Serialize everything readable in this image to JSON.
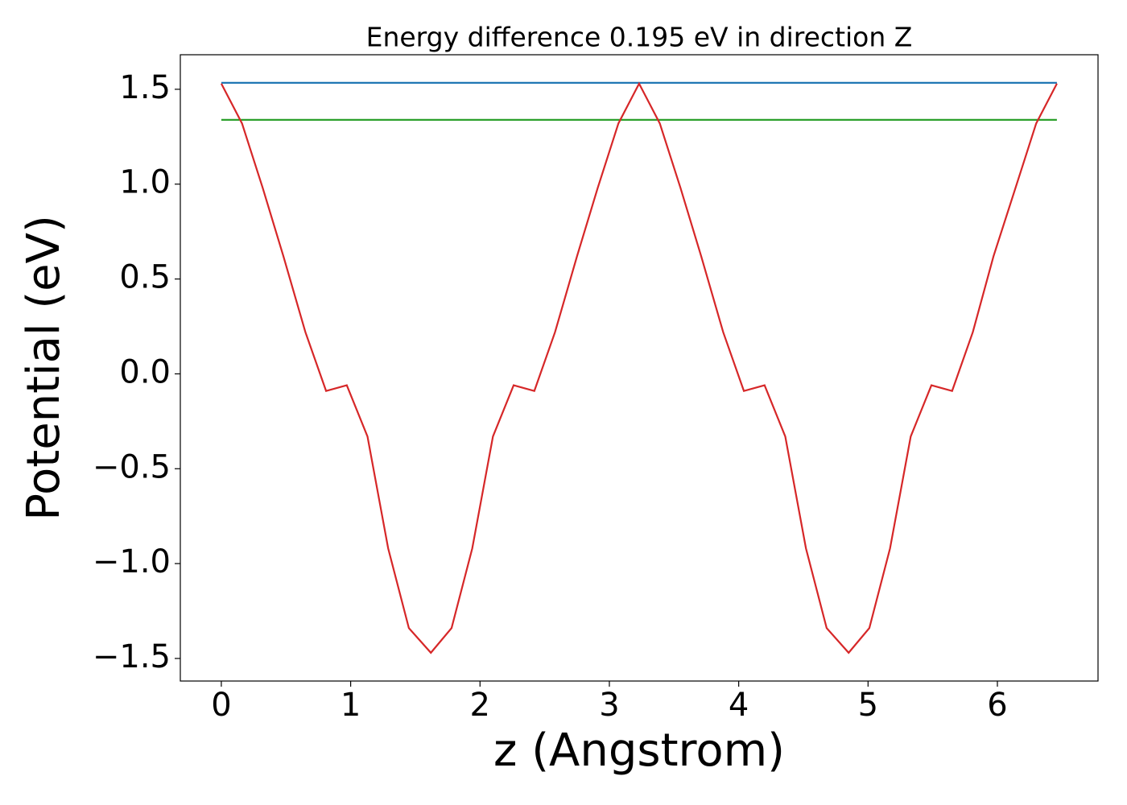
{
  "chart_data": {
    "type": "line",
    "title": "Energy difference 0.195 eV in direction Z",
    "xlabel": "z (Angstrom)",
    "ylabel": "Potential (eV)",
    "series": [
      {
        "color": "#1f77b4",
        "x": [
          0,
          6.46
        ],
        "values": [
          1.534,
          1.534
        ]
      },
      {
        "color": "#2ca02c",
        "x": [
          0,
          6.46
        ],
        "values": [
          1.339,
          1.339
        ]
      },
      {
        "color": "#d62728",
        "x": [
          0,
          0.16,
          0.32,
          0.48,
          0.65,
          0.81,
          0.97,
          1.13,
          1.29,
          1.45,
          1.62,
          1.78,
          1.94,
          2.1,
          2.26,
          2.42,
          2.58,
          2.75,
          2.91,
          3.07,
          3.23,
          3.39,
          3.55,
          3.71,
          3.88,
          4.04,
          4.2,
          4.36,
          4.52,
          4.68,
          4.85,
          5.01,
          5.17,
          5.33,
          5.49,
          5.65,
          5.81,
          5.97,
          6.14,
          6.3,
          6.46
        ],
        "values": [
          1.53,
          1.32,
          0.98,
          0.62,
          0.22,
          -0.09,
          -0.06,
          -0.33,
          -0.92,
          -1.34,
          -1.47,
          -1.34,
          -0.92,
          -0.33,
          -0.06,
          -0.09,
          0.22,
          0.62,
          0.98,
          1.32,
          1.53,
          1.32,
          0.98,
          0.62,
          0.22,
          -0.09,
          -0.06,
          -0.33,
          -0.92,
          -1.34,
          -1.47,
          -1.34,
          -0.92,
          -0.33,
          -0.06,
          -0.09,
          0.22,
          0.62,
          0.98,
          1.32,
          1.53
        ]
      }
    ],
    "xlim": [
      -0.317,
      6.778
    ],
    "ylim": [
      -1.619,
      1.682
    ],
    "xticks": [
      0,
      1,
      2,
      3,
      4,
      5,
      6
    ],
    "yticks": [
      {
        "value": -1.5,
        "label": "−1.5"
      },
      {
        "value": -1.0,
        "label": "−1.0"
      },
      {
        "value": -0.5,
        "label": "−0.5"
      },
      {
        "value": 0,
        "label": "0.0"
      },
      {
        "value": 0.5,
        "label": "0.5"
      },
      {
        "value": 1.0,
        "label": "1.0"
      },
      {
        "value": 1.5,
        "label": "1.5"
      }
    ],
    "grid": false
  }
}
